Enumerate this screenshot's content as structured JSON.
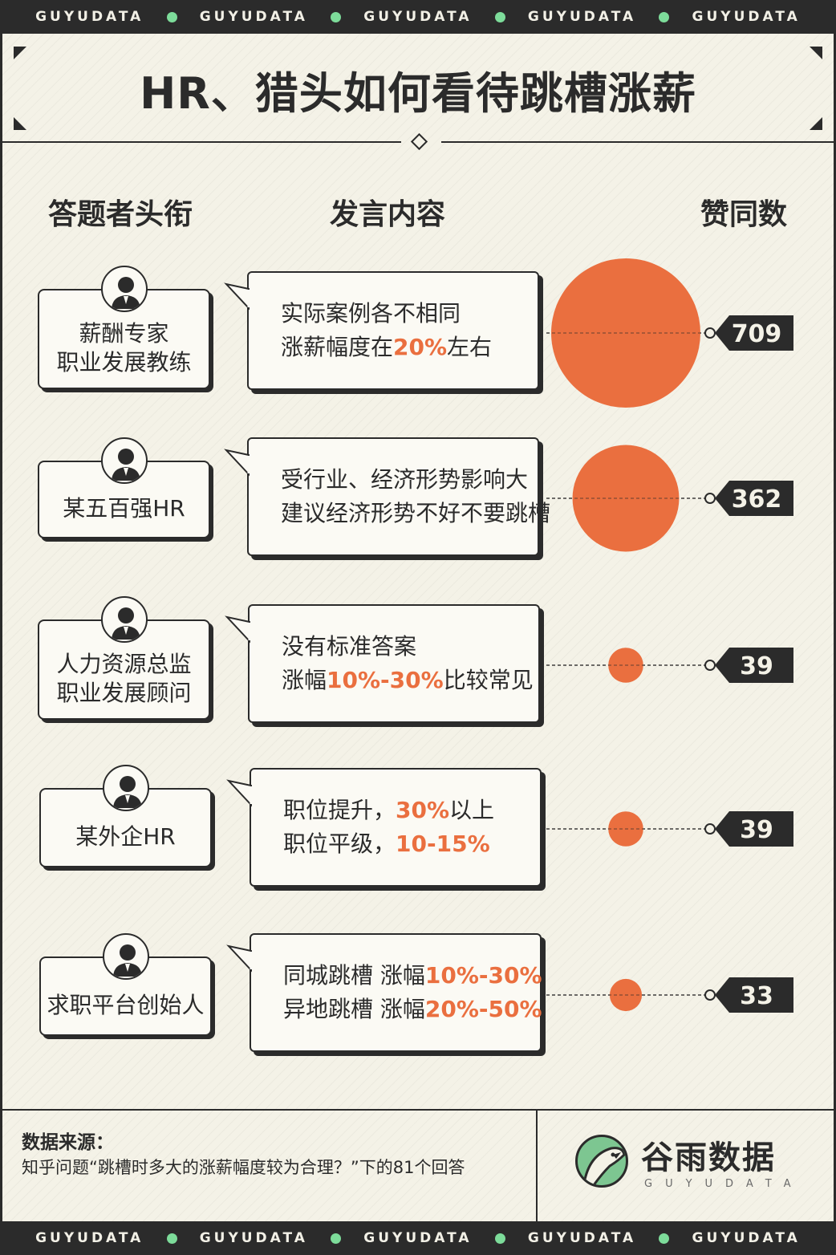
{
  "banner_word": "GUYUDATA",
  "title": "HR、猎头如何看待跳槽涨薪",
  "columns": {
    "title_col": "答题者头衔",
    "content_col": "发言内容",
    "votes_col": "赞同数"
  },
  "colors": {
    "accent": "#ea6f3f",
    "dark": "#2b2b2b",
    "background": "#f4f2e7",
    "brand_green": "#7dc691"
  },
  "rows": [
    {
      "title_lines": [
        "薪酬专家",
        "职业发展教练"
      ],
      "content": [
        [
          {
            "t": "实际案例各不相同",
            "hl": false
          }
        ],
        [
          {
            "t": "涨薪幅度在",
            "hl": false
          },
          {
            "t": "20%",
            "hl": true
          },
          {
            "t": "左右",
            "hl": false
          }
        ]
      ],
      "votes": "709"
    },
    {
      "title_lines": [
        "某五百强HR"
      ],
      "content": [
        [
          {
            "t": "受行业、经济形势影响大",
            "hl": false
          }
        ],
        [
          {
            "t": "建议经济形势不好不要跳槽",
            "hl": false
          }
        ]
      ],
      "votes": "362"
    },
    {
      "title_lines": [
        "人力资源总监",
        "职业发展顾问"
      ],
      "content": [
        [
          {
            "t": "没有标准答案",
            "hl": false
          }
        ],
        [
          {
            "t": "涨幅",
            "hl": false
          },
          {
            "t": "10%-30%",
            "hl": true
          },
          {
            "t": "比较常见",
            "hl": false
          }
        ]
      ],
      "votes": "39"
    },
    {
      "title_lines": [
        "某外企HR"
      ],
      "content": [
        [
          {
            "t": "职位提升，",
            "hl": false
          },
          {
            "t": "30%",
            "hl": true
          },
          {
            "t": "以上",
            "hl": false
          }
        ],
        [
          {
            "t": "职位平级，",
            "hl": false
          },
          {
            "t": "10-15%",
            "hl": true
          }
        ]
      ],
      "votes": "39"
    },
    {
      "title_lines": [
        "求职平台创始人"
      ],
      "content": [
        [
          {
            "t": "同城跳槽  涨幅",
            "hl": false
          },
          {
            "t": "10%-30%",
            "hl": true
          }
        ],
        [
          {
            "t": "异地跳槽  涨幅",
            "hl": false
          },
          {
            "t": "20%-50%",
            "hl": true
          }
        ]
      ],
      "votes": "33"
    }
  ],
  "chart_data": {
    "type": "bubble",
    "categories": [
      "薪酬专家 职业发展教练",
      "某五百强HR",
      "人力资源总监 职业发展顾问",
      "某外企HR",
      "求职平台创始人"
    ],
    "values": [
      709,
      362,
      39,
      39,
      33
    ]
  },
  "footer": {
    "source_label": "数据来源：",
    "source_text": "知乎问题“跳槽时多大的涨薪幅度较为合理？”下的81个回答",
    "brand_name": "谷雨数据",
    "brand_sub": "GUYUDATA"
  }
}
